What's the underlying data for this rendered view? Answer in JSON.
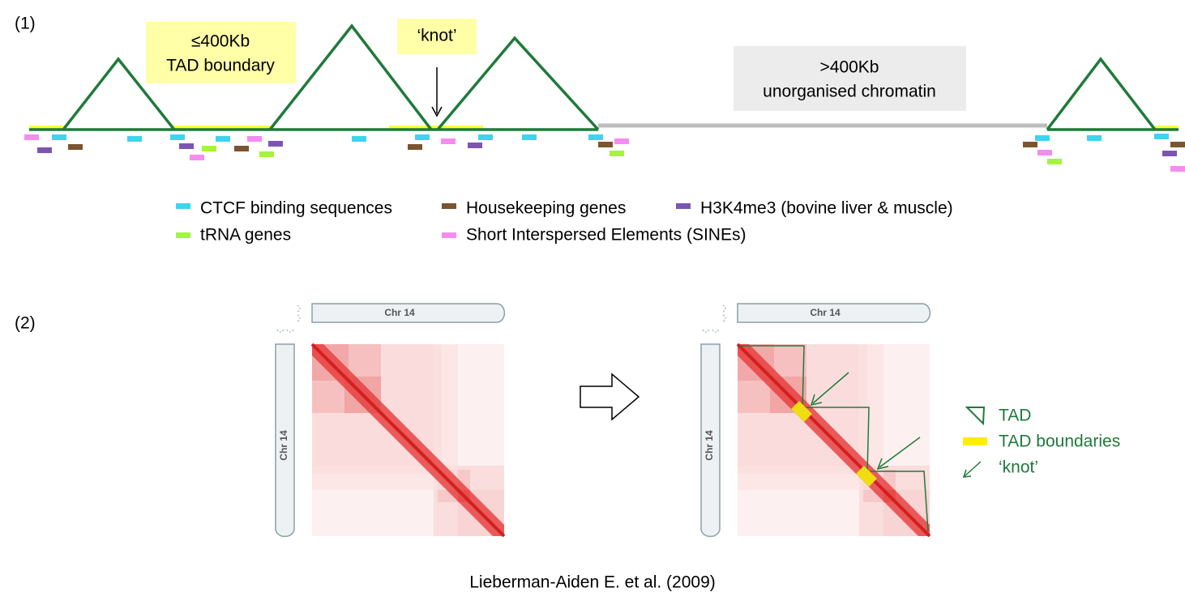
{
  "panel1": {
    "label": "(1)",
    "boundary_note": {
      "line1": "≤400Kb",
      "line2": "TAD boundary"
    },
    "knot_note": "‘knot’",
    "unorganised_note": {
      "line1": ">400Kb",
      "line2": "unorganised chromatin"
    },
    "legend": [
      {
        "label": "CTCF binding sequences",
        "color": "#3fd3f0"
      },
      {
        "label": "Housekeeping genes",
        "color": "#7b5430"
      },
      {
        "label": "H3K4me3 (bovine liver & muscle)",
        "color": "#7c55b3"
      },
      {
        "label": "tRNA genes",
        "color": "#a4f53c"
      },
      {
        "label": "Short Interspersed Elements (SINEs)",
        "color": "#f58cf0"
      }
    ]
  },
  "panel2": {
    "label": "(2)",
    "chromosome_labels": [
      "Chr 14",
      "Chr 14",
      "Chr 14",
      "Chr 14"
    ],
    "legend": [
      {
        "label": "TAD"
      },
      {
        "label": "TAD boundaries"
      },
      {
        "label": "‘knot’"
      }
    ]
  },
  "citation": "Lieberman-Aiden E. et al. (2009)"
}
